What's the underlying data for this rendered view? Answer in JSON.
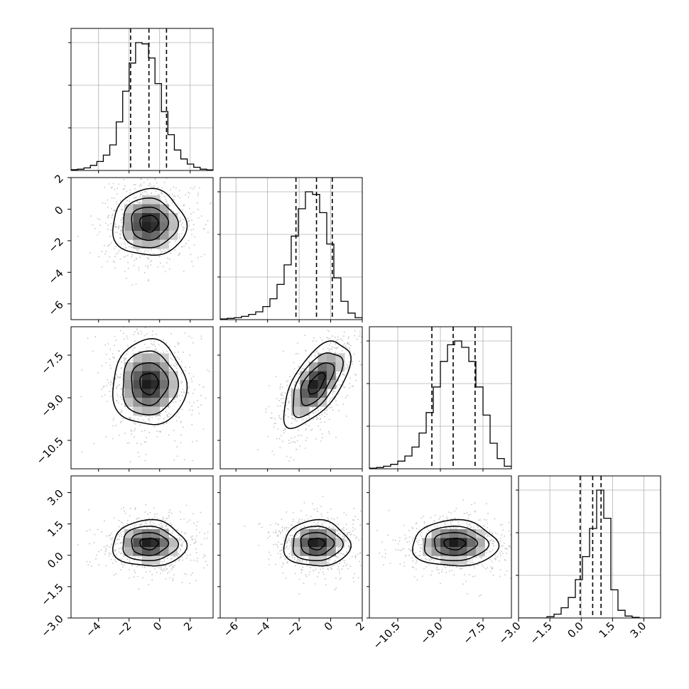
{
  "chart_data": {
    "type": "corner",
    "parameters": [
      {
        "range": [
          -5.8,
          3.5
        ],
        "ticks": [
          -4,
          -2,
          0,
          2
        ],
        "tick_labels": [
          "−4",
          "−2",
          "0",
          "2"
        ],
        "quantiles": [
          -1.9,
          -0.7,
          0.45
        ],
        "hist_counts": [
          0.6,
          1,
          2,
          4,
          7,
          12,
          20,
          38,
          62,
          84,
          100,
          99,
          88,
          68,
          46,
          28,
          16,
          9,
          5,
          2.5,
          1,
          0.5
        ]
      },
      {
        "range": [
          -7.0,
          2.0
        ],
        "ticks": [
          -6,
          -4,
          -2,
          0,
          2
        ],
        "tick_labels": [
          "−6",
          "−4",
          "−2",
          "0",
          "2"
        ],
        "quantiles": [
          -2.2,
          -0.9,
          0.1
        ],
        "hist_counts": [
          0.5,
          1,
          1.5,
          2.5,
          4,
          6,
          10,
          16,
          27,
          42,
          64,
          85,
          98,
          96,
          82,
          58,
          32,
          14,
          5,
          1.5
        ]
      },
      {
        "range": [
          -11.5,
          -6.5
        ],
        "ticks": [
          -10.5,
          -9.0,
          -7.5
        ],
        "tick_labels": [
          "−10.5",
          "−9.0",
          "−7.5"
        ],
        "quantiles": [
          -9.3,
          -8.55,
          -7.78
        ],
        "hist_counts": [
          0.5,
          1,
          2,
          3.5,
          6,
          10,
          17,
          28,
          44,
          64,
          84,
          97,
          100,
          95,
          84,
          64,
          42,
          20,
          8,
          2
        ]
      },
      {
        "range": [
          -3.0,
          3.8
        ],
        "ticks": [
          -3.0,
          -1.5,
          0.0,
          1.5,
          3.0
        ],
        "tick_labels": [
          "−3.0",
          "−1.5",
          "0.0",
          "1.5",
          "3.0"
        ],
        "quantiles": [
          -0.05,
          0.55,
          0.95
        ],
        "hist_counts": [
          0,
          0,
          0,
          0,
          1,
          3,
          8,
          16,
          30,
          48,
          70,
          100,
          78,
          22,
          6,
          1.5,
          0.5,
          0,
          0,
          0
        ]
      }
    ],
    "pairs": [
      {
        "x": 0,
        "y": 1,
        "mean": [
          -0.7,
          -0.9
        ],
        "sd": [
          1.2,
          1.05
        ],
        "rho": 0.0
      },
      {
        "x": 0,
        "y": 2,
        "mean": [
          -0.7,
          -8.5
        ],
        "sd": [
          1.2,
          0.75
        ],
        "rho": 0.0
      },
      {
        "x": 1,
        "y": 2,
        "mean": [
          -0.9,
          -8.5
        ],
        "sd": [
          1.05,
          0.75
        ],
        "rho": 0.62
      },
      {
        "x": 0,
        "y": 3,
        "mean": [
          -0.7,
          0.55
        ],
        "sd": [
          1.2,
          0.55
        ],
        "rho": 0.0
      },
      {
        "x": 1,
        "y": 3,
        "mean": [
          -0.9,
          0.55
        ],
        "sd": [
          1.05,
          0.55
        ],
        "rho": 0.0
      },
      {
        "x": 2,
        "y": 3,
        "mean": [
          -8.5,
          0.55
        ],
        "sd": [
          0.75,
          0.55
        ],
        "rho": 0.0
      }
    ],
    "grid": true,
    "colors": {
      "axis": "#000000",
      "grid": "#b0b0b0",
      "scatter": "#9a9a9a",
      "contour": "#000000"
    }
  }
}
